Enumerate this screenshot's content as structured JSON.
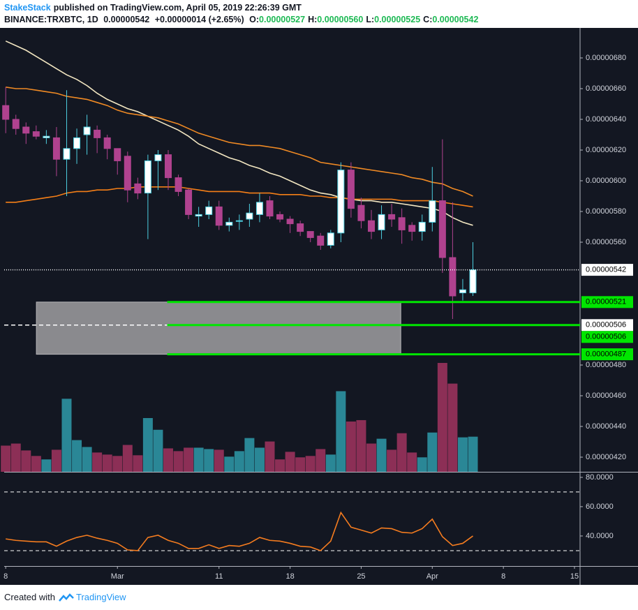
{
  "header": {
    "author": "StakeStack",
    "published": "published on TradingView.com, April 05, 2019 22:26:39 GMT",
    "symbol": "BINANCE:TRXBTC, 1D",
    "last": "0.00000542",
    "change": "+0.00000014 (+2.65%)",
    "ohlc": [
      {
        "label": "O:",
        "value": "0.00000527"
      },
      {
        "label": "H:",
        "value": "0.00000560"
      },
      {
        "label": "L:",
        "value": "0.00000525"
      },
      {
        "label": "C:",
        "value": "0.00000542"
      }
    ]
  },
  "chart_data": {
    "type": "candlestick",
    "x": [
      0,
      1,
      2,
      3,
      4,
      5,
      6,
      7,
      8,
      9,
      10,
      11,
      12,
      13,
      14,
      15,
      16,
      17,
      18,
      19,
      20,
      21,
      22,
      23,
      24,
      25,
      26,
      27,
      28,
      29,
      30,
      31,
      32,
      33,
      34,
      35,
      36,
      37,
      38,
      39,
      40,
      41,
      42,
      43,
      44,
      45,
      46
    ],
    "open": [
      6.49e-06,
      6.4e-06,
      6.35e-06,
      6.32e-06,
      6.28e-06,
      6.28e-06,
      6.14e-06,
      6.21e-06,
      6.3e-06,
      6.33e-06,
      6.28e-06,
      6.21e-06,
      6.16e-06,
      5.98e-06,
      5.92e-06,
      6.13e-06,
      6.17e-06,
      6.02e-06,
      5.94e-06,
      5.77e-06,
      5.78e-06,
      5.83e-06,
      5.71e-06,
      5.74e-06,
      5.75e-06,
      5.78e-06,
      5.87e-06,
      5.78e-06,
      5.75e-06,
      5.72e-06,
      5.67e-06,
      5.64e-06,
      5.58e-06,
      5.66e-06,
      6.07e-06,
      5.84e-06,
      5.74e-06,
      5.68e-06,
      5.78e-06,
      5.76e-06,
      5.71e-06,
      5.67e-06,
      5.73e-06,
      5.87e-06,
      5.5e-06,
      5.27e-06,
      5.27e-06
    ],
    "high": [
      6.61e-06,
      6.43e-06,
      6.38e-06,
      6.36e-06,
      6.33e-06,
      6.35e-06,
      6.59e-06,
      6.34e-06,
      6.43e-06,
      6.36e-06,
      6.3e-06,
      6.21e-06,
      6.19e-06,
      6.02e-06,
      6.17e-06,
      6.2e-06,
      6.2e-06,
      6.04e-06,
      5.95e-06,
      5.83e-06,
      5.87e-06,
      5.87e-06,
      5.76e-06,
      5.78e-06,
      5.85e-06,
      5.92e-06,
      5.9e-06,
      5.8e-06,
      5.77e-06,
      5.74e-06,
      5.67e-06,
      5.66e-06,
      5.68e-06,
      6.12e-06,
      6.12e-06,
      5.89e-06,
      5.81e-06,
      5.84e-06,
      5.85e-06,
      5.82e-06,
      5.73e-06,
      5.78e-06,
      6.09e-06,
      6.27e-06,
      5.86e-06,
      5.36e-06,
      5.6e-06
    ],
    "low": [
      6.31e-06,
      6.3e-06,
      6.24e-06,
      6.27e-06,
      6.24e-06,
      6.03e-06,
      5.9e-06,
      6.11e-06,
      6.17e-06,
      6.18e-06,
      6.14e-06,
      6.04e-06,
      5.86e-06,
      5.88e-06,
      5.62e-06,
      5.94e-06,
      5.94e-06,
      5.9e-06,
      5.75e-06,
      5.7e-06,
      5.75e-06,
      5.68e-06,
      5.67e-06,
      5.68e-06,
      5.7e-06,
      5.73e-06,
      5.75e-06,
      5.73e-06,
      5.66e-06,
      5.64e-06,
      5.6e-06,
      5.55e-06,
      5.56e-06,
      5.6e-06,
      5.76e-06,
      5.69e-06,
      5.62e-06,
      5.62e-06,
      5.7e-06,
      5.59e-06,
      5.61e-06,
      5.61e-06,
      5.67e-06,
      5.4e-06,
      5.1e-06,
      5.22e-06,
      5.25e-06
    ],
    "close": [
      6.4e-06,
      6.34e-06,
      6.31e-06,
      6.29e-06,
      6.29e-06,
      6.14e-06,
      6.21e-06,
      6.28e-06,
      6.35e-06,
      6.28e-06,
      6.21e-06,
      6.13e-06,
      5.94e-06,
      5.92e-06,
      6.13e-06,
      6.17e-06,
      6.02e-06,
      5.93e-06,
      5.78e-06,
      5.78e-06,
      5.83e-06,
      5.71e-06,
      5.73e-06,
      5.74e-06,
      5.79e-06,
      5.86e-06,
      5.77e-06,
      5.75e-06,
      5.72e-06,
      5.67e-06,
      5.63e-06,
      5.58e-06,
      5.66e-06,
      6.07e-06,
      5.82e-06,
      5.74e-06,
      5.67e-06,
      5.78e-06,
      5.75e-06,
      5.68e-06,
      5.67e-06,
      5.73e-06,
      5.87e-06,
      5.5e-06,
      5.25e-06,
      5.29e-06,
      5.42e-06
    ],
    "up_color": "#ffffff",
    "up_border": "#4dd0e1",
    "down_color": "#b0428f",
    "xlim": [
      -0.15,
      56.55
    ],
    "xticks": [
      {
        "value": 0,
        "label": "8"
      },
      {
        "value": 11,
        "label": "Mar"
      },
      {
        "value": 21,
        "label": "11"
      },
      {
        "value": 28,
        "label": "18"
      },
      {
        "value": 35,
        "label": "25"
      },
      {
        "value": 42,
        "label": "Apr"
      },
      {
        "value": 49,
        "label": "8"
      },
      {
        "value": 56,
        "label": "15"
      }
    ],
    "ylim": [
      4.1045e-06,
      6.9955e-06
    ],
    "yticks": [
      {
        "value": 6.8e-06,
        "label": "0.00000680"
      },
      {
        "value": 6.6e-06,
        "label": "0.00000660"
      },
      {
        "value": 6.4e-06,
        "label": "0.00000640"
      },
      {
        "value": 6.2e-06,
        "label": "0.00000620"
      },
      {
        "value": 6e-06,
        "label": "0.00000600"
      },
      {
        "value": 5.8e-06,
        "label": "0.00000580"
      },
      {
        "value": 5.6e-06,
        "label": "0.00000560"
      },
      {
        "value": 4.8e-06,
        "label": "0.00000480"
      },
      {
        "value": 4.6e-06,
        "label": "0.00000460"
      },
      {
        "value": 4.4e-06,
        "label": "0.00000440"
      },
      {
        "value": 4.2e-06,
        "label": "0.00000420"
      }
    ],
    "moving_averages": [
      {
        "color": "#f3e7c2",
        "values": [
          6.91e-06,
          6.88e-06,
          6.85e-06,
          6.81e-06,
          6.77e-06,
          6.73e-06,
          6.69e-06,
          6.66e-06,
          6.62e-06,
          6.57e-06,
          6.53e-06,
          6.5e-06,
          6.47e-06,
          6.45e-06,
          6.42e-06,
          6.39e-06,
          6.36e-06,
          6.33e-06,
          6.29e-06,
          6.24e-06,
          6.21e-06,
          6.18e-06,
          6.15e-06,
          6.13e-06,
          6.1e-06,
          6.08e-06,
          6.05e-06,
          6.03e-06,
          6e-06,
          5.97e-06,
          5.94e-06,
          5.92e-06,
          5.91e-06,
          5.89e-06,
          5.88e-06,
          5.87e-06,
          5.87e-06,
          5.86e-06,
          5.86e-06,
          5.85e-06,
          5.84e-06,
          5.83e-06,
          5.82e-06,
          5.8e-06,
          5.76e-06,
          5.73e-06,
          5.71e-06
        ]
      },
      {
        "color": "#f08a24",
        "values": [
          6.61e-06,
          6.6e-06,
          6.6e-06,
          6.59e-06,
          6.58e-06,
          6.57e-06,
          6.55e-06,
          6.54e-06,
          6.53e-06,
          6.51e-06,
          6.49e-06,
          6.46e-06,
          6.44e-06,
          6.43e-06,
          6.42e-06,
          6.41e-06,
          6.39e-06,
          6.37e-06,
          6.34e-06,
          6.31e-06,
          6.29e-06,
          6.27e-06,
          6.25e-06,
          6.24e-06,
          6.23e-06,
          6.23e-06,
          6.22e-06,
          6.21e-06,
          6.19e-06,
          6.17e-06,
          6.15e-06,
          6.12e-06,
          6.11e-06,
          6.1e-06,
          6.09e-06,
          6.08e-06,
          6.07e-06,
          6.06e-06,
          6.05e-06,
          6.04e-06,
          6.02e-06,
          6.01e-06,
          5.99e-06,
          5.98e-06,
          5.95e-06,
          5.93e-06,
          5.9e-06
        ]
      },
      {
        "color": "#f57f17",
        "values": [
          5.86e-06,
          5.86e-06,
          5.87e-06,
          5.88e-06,
          5.89e-06,
          5.9e-06,
          5.92e-06,
          5.93e-06,
          5.93e-06,
          5.94e-06,
          5.94e-06,
          5.95e-06,
          5.95e-06,
          5.96e-06,
          5.96e-06,
          5.96e-06,
          5.96e-06,
          5.96e-06,
          5.95e-06,
          5.94e-06,
          5.93e-06,
          5.93e-06,
          5.93e-06,
          5.93e-06,
          5.92e-06,
          5.92e-06,
          5.92e-06,
          5.91e-06,
          5.91e-06,
          5.91e-06,
          5.9e-06,
          5.9e-06,
          5.89e-06,
          5.89e-06,
          5.88e-06,
          5.88e-06,
          5.88e-06,
          5.88e-06,
          5.88e-06,
          5.87e-06,
          5.87e-06,
          5.87e-06,
          5.87e-06,
          5.86e-06,
          5.85e-06,
          5.84e-06,
          5.83e-06
        ]
      }
    ],
    "volume": {
      "up_color": "#2a8796",
      "down_color": "#8c2f56",
      "values": [
        38,
        41,
        31,
        23,
        18,
        32,
        106,
        46,
        36,
        28,
        25,
        23,
        39,
        24,
        78,
        61,
        34,
        30,
        35,
        35,
        33,
        32,
        22,
        30,
        49,
        35,
        44,
        18,
        29,
        21,
        23,
        33,
        25,
        117,
        73,
        75,
        41,
        48,
        32,
        56,
        28,
        21,
        57,
        158,
        128,
        50,
        51
      ]
    },
    "zone": {
      "top": 5.21e-06,
      "bottom": 4.87e-06,
      "x_start": 3.02,
      "x_end": 38.9,
      "color": "#8a8a8e"
    },
    "levels": [
      {
        "value": 5.42e-06,
        "label": "0.00000542",
        "color": "#ffffff",
        "style": "dotted"
      },
      {
        "value": 5.21e-06,
        "label": "0.00000521",
        "color": "#00e600",
        "style": "solid",
        "x_start": 15.9
      },
      {
        "value": 5.06e-06,
        "label": "0.00000506",
        "color": "#ffffff",
        "style": "dashed"
      },
      {
        "value": 5.06e-06,
        "label": "0.00000506",
        "color": "#00e600",
        "style": "solid",
        "x_start": 15.9
      },
      {
        "value": 4.87e-06,
        "label": "0.00000487",
        "color": "#00e600",
        "style": "solid",
        "x_start": 15.9
      }
    ],
    "rsi": {
      "color": "#f57c1f",
      "ylim": [
        19.5,
        83.3
      ],
      "yticks": [
        {
          "value": 80,
          "label": "80.0000"
        },
        {
          "value": 60,
          "label": "60.0000"
        },
        {
          "value": 40,
          "label": "40.0000"
        }
      ],
      "bands": [
        70,
        30
      ],
      "values": [
        38,
        37,
        36.5,
        36,
        36,
        33,
        36.5,
        39,
        40.5,
        38.5,
        37,
        35,
        30.5,
        30,
        39,
        40.5,
        37,
        35,
        31.5,
        31.5,
        34,
        31.5,
        33.5,
        33,
        35,
        39,
        37,
        36.5,
        35,
        33,
        32.5,
        30,
        36.5,
        56,
        46,
        44,
        42,
        45.5,
        45,
        42.5,
        42,
        45,
        51.5,
        39.5,
        33.5,
        35,
        40
      ]
    }
  },
  "footer": {
    "text": "Created with",
    "brand": "TradingView"
  }
}
